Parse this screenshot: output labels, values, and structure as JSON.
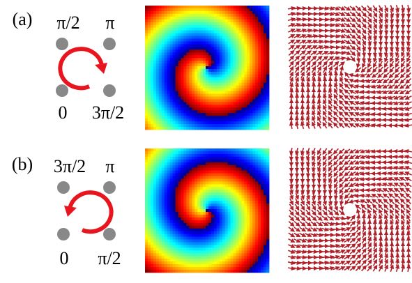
{
  "panels": [
    {
      "label": "(a)",
      "corners": {
        "top_left": "π/2",
        "top_right": "π",
        "bottom_left": "0",
        "bottom_right": "3π/2"
      }
    },
    {
      "label": "(b)",
      "corners": {
        "top_left": "3π/2",
        "top_right": "π",
        "bottom_left": "0",
        "bottom_right": "π/2"
      }
    }
  ]
}
